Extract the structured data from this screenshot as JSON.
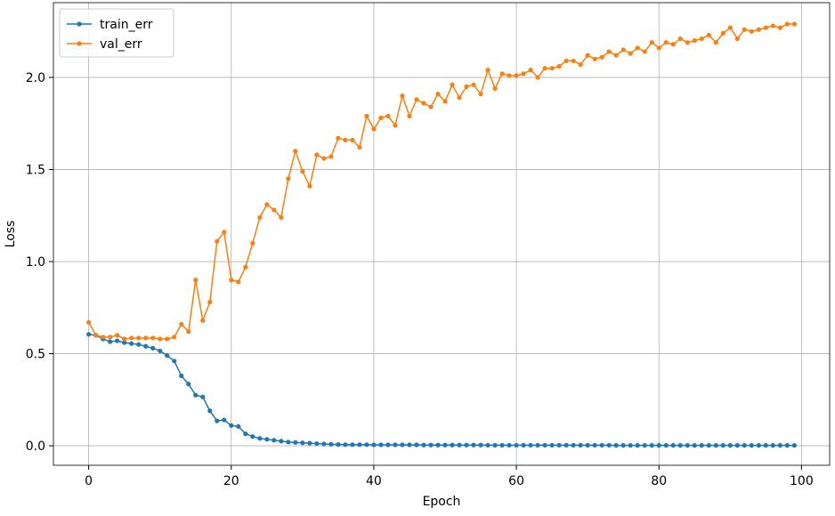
{
  "chart_data": {
    "type": "line",
    "xlabel": "Epoch",
    "ylabel": "Loss",
    "x": [
      0,
      1,
      2,
      3,
      4,
      5,
      6,
      7,
      8,
      9,
      10,
      11,
      12,
      13,
      14,
      15,
      16,
      17,
      18,
      19,
      20,
      21,
      22,
      23,
      24,
      25,
      26,
      27,
      28,
      29,
      30,
      31,
      32,
      33,
      34,
      35,
      36,
      37,
      38,
      39,
      40,
      41,
      42,
      43,
      44,
      45,
      46,
      47,
      48,
      49,
      50,
      51,
      52,
      53,
      54,
      55,
      56,
      57,
      58,
      59,
      60,
      61,
      62,
      63,
      64,
      65,
      66,
      67,
      68,
      69,
      70,
      71,
      72,
      73,
      74,
      75,
      76,
      77,
      78,
      79,
      80,
      81,
      82,
      83,
      84,
      85,
      86,
      87,
      88,
      89,
      90,
      91,
      92,
      93,
      94,
      95,
      96,
      97,
      98,
      99
    ],
    "series": [
      {
        "name": "train_err",
        "color": "#1f77b4",
        "values": [
          0.605,
          0.6,
          0.58,
          0.565,
          0.57,
          0.56,
          0.555,
          0.55,
          0.54,
          0.53,
          0.515,
          0.49,
          0.46,
          0.38,
          0.335,
          0.275,
          0.265,
          0.19,
          0.135,
          0.14,
          0.11,
          0.105,
          0.065,
          0.05,
          0.04,
          0.035,
          0.03,
          0.025,
          0.02,
          0.018,
          0.016,
          0.014,
          0.012,
          0.01,
          0.008,
          0.007,
          0.006,
          0.006,
          0.006,
          0.006,
          0.005,
          0.005,
          0.005,
          0.005,
          0.005,
          0.005,
          0.005,
          0.004,
          0.004,
          0.004,
          0.004,
          0.004,
          0.004,
          0.004,
          0.004,
          0.004,
          0.003,
          0.003,
          0.003,
          0.003,
          0.003,
          0.003,
          0.003,
          0.003,
          0.003,
          0.003,
          0.003,
          0.003,
          0.003,
          0.003,
          0.003,
          0.003,
          0.003,
          0.003,
          0.002,
          0.002,
          0.002,
          0.002,
          0.002,
          0.002,
          0.002,
          0.002,
          0.002,
          0.002,
          0.002,
          0.002,
          0.002,
          0.002,
          0.002,
          0.002,
          0.002,
          0.002,
          0.002,
          0.002,
          0.002,
          0.002,
          0.002,
          0.002,
          0.002,
          0.002
        ]
      },
      {
        "name": "val_err",
        "color": "#ff7f0e",
        "values": [
          0.67,
          0.6,
          0.59,
          0.59,
          0.6,
          0.58,
          0.585,
          0.585,
          0.585,
          0.585,
          0.58,
          0.58,
          0.59,
          0.66,
          0.62,
          0.9,
          0.68,
          0.78,
          1.11,
          1.16,
          0.9,
          0.89,
          0.97,
          1.1,
          1.24,
          1.31,
          1.28,
          1.24,
          1.45,
          1.6,
          1.49,
          1.41,
          1.58,
          1.56,
          1.57,
          1.67,
          1.66,
          1.66,
          1.62,
          1.79,
          1.72,
          1.78,
          1.79,
          1.74,
          1.9,
          1.79,
          1.88,
          1.86,
          1.84,
          1.91,
          1.87,
          1.96,
          1.89,
          1.95,
          1.96,
          1.91,
          2.04,
          1.94,
          2.02,
          2.01,
          2.01,
          2.02,
          2.04,
          2.0,
          2.05,
          2.05,
          2.06,
          2.09,
          2.09,
          2.07,
          2.12,
          2.1,
          2.11,
          2.14,
          2.12,
          2.15,
          2.13,
          2.16,
          2.14,
          2.19,
          2.16,
          2.19,
          2.18,
          2.21,
          2.19,
          2.2,
          2.21,
          2.23,
          2.19,
          2.24,
          2.27,
          2.21,
          2.26,
          2.25,
          2.26,
          2.27,
          2.28,
          2.27,
          2.29,
          2.29
        ]
      }
    ],
    "xlim": [
      -4.95,
      103.95
    ],
    "xticks": [
      0,
      20,
      40,
      60,
      80,
      100
    ],
    "ylim": [
      -0.106,
      2.406
    ],
    "yticks": [
      {
        "value": 0,
        "label": "0.0"
      },
      0.5,
      {
        "value": 1,
        "label": "1.0"
      },
      1.5,
      {
        "value": 2,
        "label": "2.0"
      }
    ],
    "grid": true,
    "legend": "upper left"
  }
}
